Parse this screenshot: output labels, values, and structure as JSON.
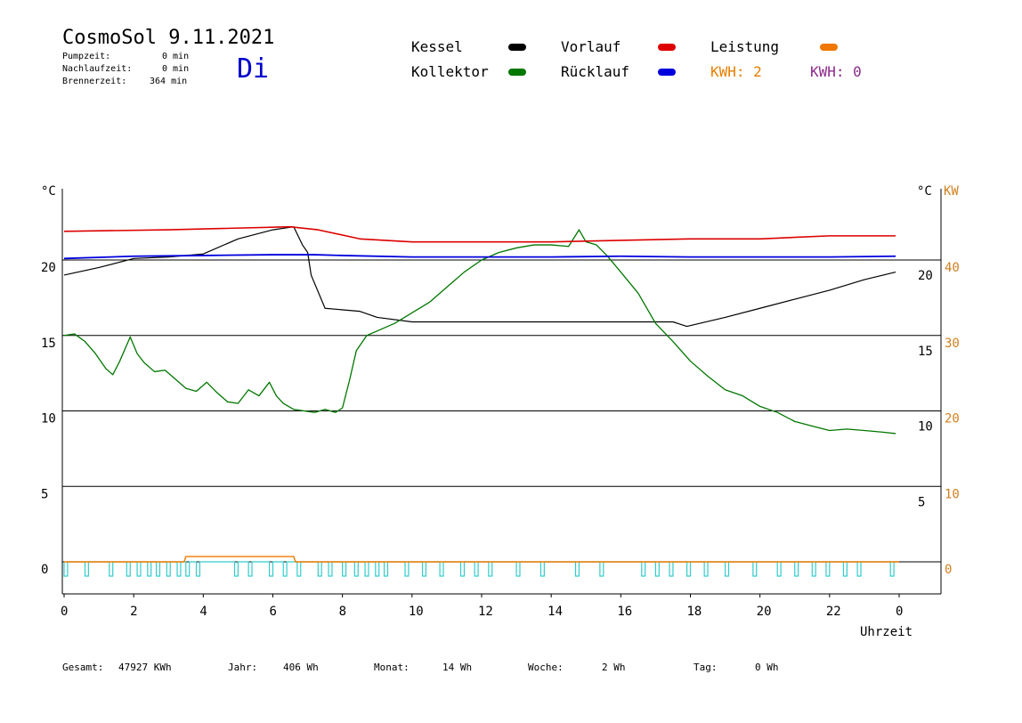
{
  "header": {
    "title": "CosmoSol 9.11.2021",
    "pumpzeit_label": "Pumpzeit:",
    "pumpzeit_value": "0 min",
    "nachlaufzeit_label": "Nachlaufzeit:",
    "nachlaufzeit_value": "0 min",
    "brennerzeit_label": "Brennerzeit:",
    "brennerzeit_value": "364 min",
    "day": "Di"
  },
  "legend": {
    "kessel": "Kessel",
    "kollektor": "Kollektor",
    "vorlauf": "Vorlauf",
    "ruecklauf": "Rücklauf",
    "leistung": "Leistung",
    "kwh_a": "KWH: 2",
    "kwh_b": "KWH: 0"
  },
  "colors": {
    "kessel": "#000000",
    "kollektor": "#007700",
    "vorlauf": "#dd0000",
    "ruecklauf": "#0000dd",
    "leistung": "#f07800",
    "pump": "#33cccc",
    "kw_axis": "#d08020",
    "day": "#0000cc"
  },
  "footer": {
    "gesamt_label": "Gesamt:",
    "gesamt_value": "47927 KWh",
    "jahr_label": "Jahr:",
    "jahr_value": "406 Wh",
    "monat_label": "Monat:",
    "monat_value": "14 Wh",
    "woche_label": "Woche:",
    "woche_value": "2 Wh",
    "tag_label": "Tag:",
    "tag_value": "0 Wh"
  },
  "chart_data": {
    "type": "line",
    "xlabel": "Uhrzeit",
    "ylabel_left": "°C",
    "ylabel_right_c": "°C",
    "ylabel_right_kw": "KW",
    "x_ticks": [
      "0",
      "2",
      "4",
      "6",
      "8",
      "10",
      "12",
      "14",
      "16",
      "18",
      "20",
      "22",
      "0"
    ],
    "xlim": [
      0,
      24
    ],
    "ylim": [
      -1.8,
      24.5
    ],
    "y_ticks_left": [
      0,
      5,
      10,
      15,
      20
    ],
    "y_ticks_right_c": [
      5,
      10,
      15,
      20
    ],
    "y_ticks_right_kw": [
      0,
      10,
      20,
      30,
      40
    ],
    "kw_axis_ratio": 2,
    "gridlines_at": [
      0,
      5,
      10,
      15,
      20
    ],
    "series": [
      {
        "name": "Kessel",
        "x": [
          0,
          1,
          2,
          3,
          4,
          5,
          6,
          6.6,
          6.85,
          7.0,
          7.1,
          7.5,
          8.5,
          9.0,
          10.0,
          12.0,
          14.0,
          16.0,
          17.5,
          17.9,
          19.0,
          20.0,
          21.0,
          22.0,
          23.0,
          23.9
        ],
        "y": [
          19.0,
          19.5,
          20.1,
          20.2,
          20.4,
          21.4,
          22.0,
          22.2,
          21.0,
          20.5,
          19.0,
          16.8,
          16.6,
          16.2,
          15.9,
          15.9,
          15.9,
          15.9,
          15.9,
          15.6,
          16.2,
          16.8,
          17.4,
          18.0,
          18.7,
          19.2
        ]
      },
      {
        "name": "Kollektor",
        "x": [
          0,
          0.3,
          0.6,
          0.9,
          1.2,
          1.4,
          1.6,
          1.9,
          2.1,
          2.3,
          2.6,
          2.9,
          3.2,
          3.5,
          3.8,
          4.1,
          4.4,
          4.7,
          5.0,
          5.3,
          5.6,
          5.9,
          6.1,
          6.3,
          6.6,
          6.9,
          7.2,
          7.5,
          7.8,
          8.0,
          8.2,
          8.4,
          8.7,
          9.0,
          9.5,
          10.0,
          10.5,
          11.0,
          11.5,
          12.0,
          12.5,
          13.0,
          13.5,
          14.0,
          14.5,
          14.8,
          15.0,
          15.3,
          15.6,
          16.0,
          16.5,
          17.0,
          17.5,
          18.0,
          18.5,
          19.0,
          19.5,
          20.0,
          20.5,
          21.0,
          21.5,
          22.0,
          22.5,
          23.0,
          23.5,
          23.9
        ],
        "y": [
          15.0,
          15.1,
          14.6,
          13.8,
          12.8,
          12.4,
          13.3,
          14.9,
          13.8,
          13.2,
          12.6,
          12.7,
          12.1,
          11.5,
          11.3,
          11.9,
          11.2,
          10.6,
          10.5,
          11.4,
          11.0,
          11.9,
          11.0,
          10.5,
          10.1,
          10.0,
          9.9,
          10.1,
          9.9,
          10.2,
          12.0,
          14.0,
          15.0,
          15.3,
          15.8,
          16.5,
          17.2,
          18.2,
          19.2,
          20.0,
          20.5,
          20.8,
          21.0,
          21.0,
          20.9,
          22.0,
          21.2,
          21.0,
          20.3,
          19.2,
          17.8,
          15.8,
          14.6,
          13.3,
          12.3,
          11.4,
          11.0,
          10.3,
          9.9,
          9.3,
          9.0,
          8.7,
          8.8,
          8.7,
          8.6,
          8.5
        ]
      },
      {
        "name": "Vorlauf",
        "x": [
          0,
          3,
          6.5,
          7.3,
          8.5,
          10,
          12,
          14,
          16,
          18,
          20,
          22,
          23.9
        ],
        "y": [
          21.9,
          22.0,
          22.2,
          22.0,
          21.4,
          21.2,
          21.2,
          21.2,
          21.3,
          21.4,
          21.4,
          21.6,
          21.6
        ]
      },
      {
        "name": "Rücklauf",
        "x": [
          0,
          2,
          4,
          6,
          7.2,
          8,
          10,
          12,
          14,
          16,
          18,
          20,
          22,
          23.9
        ],
        "y": [
          20.1,
          20.25,
          20.3,
          20.35,
          20.35,
          20.3,
          20.2,
          20.2,
          20.2,
          20.25,
          20.2,
          20.2,
          20.2,
          20.25
        ]
      },
      {
        "name": "Leistung",
        "x": [
          0,
          3.45,
          3.5,
          6.6,
          6.65,
          24
        ],
        "y": [
          0,
          0,
          0.35,
          0.35,
          0,
          0
        ]
      }
    ],
    "pump_pulses": [
      0.0,
      0.6,
      1.3,
      1.8,
      2.1,
      2.4,
      2.65,
      2.95,
      3.25,
      3.5,
      3.8,
      4.9,
      5.3,
      5.9,
      6.3,
      6.7,
      7.3,
      7.6,
      8.0,
      8.35,
      8.65,
      8.95,
      9.2,
      9.8,
      10.3,
      10.8,
      11.4,
      11.8,
      12.2,
      13.0,
      13.7,
      14.7,
      15.4,
      16.6,
      17.0,
      17.4,
      17.9,
      18.4,
      19.0,
      19.8,
      20.5,
      21.0,
      21.5,
      21.9,
      22.4,
      22.8,
      23.75
    ]
  }
}
